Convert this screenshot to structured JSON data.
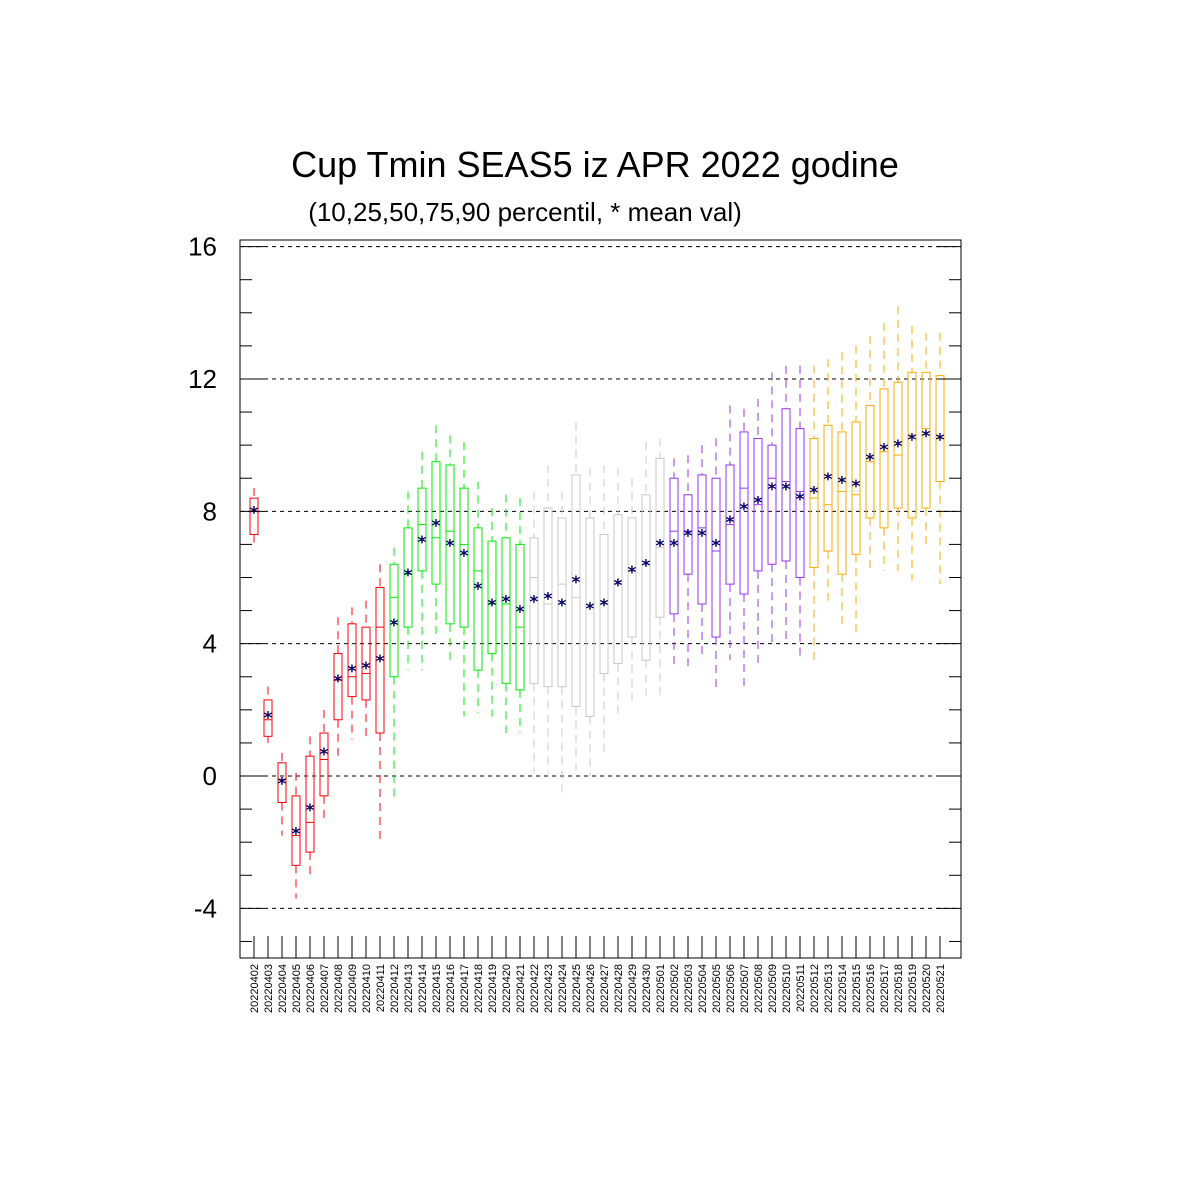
{
  "chart_data": {
    "type": "box",
    "title": "Cup Tmin SEAS5 iz APR 2022 godine",
    "subtitle": "(10,25,50,75,90 percentil, * mean val)",
    "ylim": [
      -5.5,
      16.2
    ],
    "yticks": [
      -4,
      0,
      4,
      8,
      12,
      16
    ],
    "grid": "dashed horizontal at y ticks",
    "mean_color": "#000066",
    "categories": [
      "20220402",
      "20220403",
      "20220404",
      "20220405",
      "20220406",
      "20220407",
      "20220408",
      "20220409",
      "20220410",
      "20220411",
      "20220412",
      "20220413",
      "20220414",
      "20220415",
      "20220416",
      "20220417",
      "20220418",
      "20220419",
      "20220420",
      "20220421",
      "20220422",
      "20220423",
      "20220424",
      "20220425",
      "20220426",
      "20220427",
      "20220428",
      "20220429",
      "20220430",
      "20220501",
      "20220502",
      "20220503",
      "20220504",
      "20220505",
      "20220506",
      "20220507",
      "20220508",
      "20220509",
      "20220510",
      "20220511",
      "20220512",
      "20220513",
      "20220514",
      "20220515",
      "20220516",
      "20220517",
      "20220518",
      "20220519",
      "20220520",
      "20220521"
    ],
    "colors": [
      "#ff0000",
      "#ff0000",
      "#ff0000",
      "#ff0000",
      "#ff0000",
      "#ff0000",
      "#ff0000",
      "#ff0000",
      "#ff0000",
      "#ff0000",
      "#00ee00",
      "#00ee00",
      "#00ee00",
      "#00ee00",
      "#00ee00",
      "#00ee00",
      "#00ee00",
      "#00ee00",
      "#00ee00",
      "#00ee00",
      "#c8c8c8",
      "#c8c8c8",
      "#c8c8c8",
      "#c8c8c8",
      "#c8c8c8",
      "#c8c8c8",
      "#c8c8c8",
      "#c8c8c8",
      "#c8c8c8",
      "#c8c8c8",
      "#9933ee",
      "#9933ee",
      "#9933ee",
      "#9933ee",
      "#9933ee",
      "#9933ee",
      "#9933ee",
      "#9933ee",
      "#9933ee",
      "#9933ee",
      "#ffaa00",
      "#ffaa00",
      "#ffaa00",
      "#ffaa00",
      "#ffaa00",
      "#ffaa00",
      "#ffaa00",
      "#ffaa00",
      "#ffaa00",
      "#ffaa00"
    ],
    "p10": [
      6.9,
      1.0,
      -1.8,
      -3.7,
      -3.1,
      -1.3,
      0.6,
      1.1,
      1.1,
      -1.9,
      -0.8,
      3.2,
      3.2,
      4.2,
      3.5,
      1.8,
      1.9,
      1.8,
      1.3,
      1.3,
      0.1,
      0.1,
      -0.5,
      0.1,
      0.0,
      0.7,
      1.7,
      2.1,
      2.4,
      2.3,
      3.2,
      3.2,
      3.5,
      2.6,
      3.5,
      2.6,
      3.4,
      3.9,
      4.0,
      3.6,
      3.4,
      5.3,
      4.6,
      4.2,
      6.2,
      6.2,
      6.2,
      5.9,
      6.9,
      5.8
    ],
    "p25": [
      7.3,
      1.2,
      -0.8,
      -2.7,
      -2.3,
      -0.6,
      1.7,
      2.4,
      2.3,
      1.3,
      3.0,
      4.5,
      6.2,
      5.8,
      4.6,
      4.5,
      3.2,
      3.7,
      2.8,
      2.6,
      2.8,
      2.7,
      2.7,
      2.1,
      1.8,
      3.1,
      3.4,
      4.2,
      3.5,
      4.8,
      4.9,
      6.1,
      5.2,
      4.2,
      5.8,
      5.5,
      6.2,
      6.4,
      6.5,
      6.0,
      6.3,
      6.8,
      6.1,
      6.7,
      7.8,
      7.5,
      8.1,
      7.8,
      8.1,
      8.9
    ],
    "p50": [
      8.0,
      1.7,
      -0.1,
      -1.8,
      -1.4,
      0.5,
      2.9,
      3.0,
      3.1,
      4.5,
      5.4,
      6.1,
      7.6,
      7.2,
      7.4,
      7.0,
      6.2,
      5.2,
      5.2,
      4.5,
      6.0,
      5.2,
      5.8,
      5.4,
      5.1,
      5.2,
      5.8,
      6.2,
      6.4,
      6.9,
      7.4,
      7.4,
      7.5,
      6.8,
      7.6,
      8.7,
      8.2,
      9.0,
      8.9,
      8.6,
      8.4,
      8.2,
      8.6,
      8.5,
      9.5,
      9.8,
      9.7,
      10.3,
      10.5,
      10.2
    ],
    "p75": [
      8.4,
      2.3,
      0.4,
      -0.6,
      0.6,
      1.3,
      3.7,
      4.6,
      4.5,
      5.7,
      6.4,
      7.5,
      8.7,
      9.5,
      9.4,
      8.7,
      7.5,
      7.1,
      7.2,
      7.0,
      7.2,
      8.1,
      7.8,
      9.1,
      7.8,
      7.3,
      7.9,
      7.8,
      8.5,
      9.6,
      9.0,
      8.5,
      9.1,
      9.0,
      9.4,
      10.4,
      10.2,
      10.0,
      11.1,
      10.5,
      10.2,
      10.6,
      10.4,
      10.7,
      11.2,
      11.7,
      11.9,
      12.2,
      12.2,
      12.1
    ],
    "p90": [
      8.7,
      2.7,
      0.7,
      0.1,
      1.2,
      2.0,
      4.8,
      5.1,
      5.3,
      6.4,
      6.9,
      8.6,
      9.8,
      10.6,
      10.3,
      10.1,
      8.9,
      8.1,
      8.5,
      8.4,
      8.6,
      9.4,
      8.6,
      10.7,
      9.3,
      9.4,
      9.3,
      9.0,
      10.1,
      10.2,
      9.6,
      9.7,
      10.0,
      10.2,
      11.2,
      11.1,
      11.4,
      12.2,
      12.4,
      12.4,
      12.4,
      12.6,
      12.8,
      13.0,
      13.3,
      13.7,
      14.2,
      13.6,
      13.4,
      13.4
    ],
    "mean": [
      8.0,
      1.8,
      -0.2,
      -1.7,
      -1.0,
      0.7,
      2.9,
      3.2,
      3.3,
      3.5,
      4.6,
      6.1,
      7.1,
      7.6,
      7.0,
      6.7,
      5.7,
      5.2,
      5.3,
      5.0,
      5.3,
      5.4,
      5.2,
      5.9,
      5.1,
      5.2,
      5.8,
      6.2,
      6.4,
      7.0,
      7.0,
      7.3,
      7.3,
      7.0,
      7.7,
      8.1,
      8.3,
      8.7,
      8.7,
      8.4,
      8.6,
      9.0,
      8.9,
      8.8,
      9.6,
      9.9,
      10.0,
      10.2,
      10.3,
      10.2
    ]
  }
}
